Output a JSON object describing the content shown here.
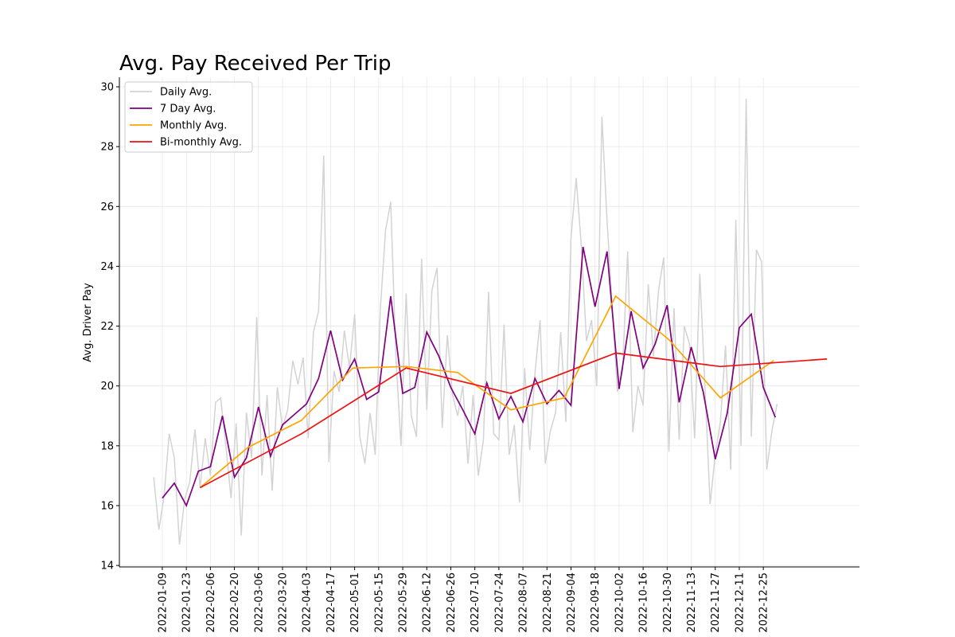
{
  "chart_data": {
    "type": "line",
    "title": "Avg. Pay Received Per Trip",
    "y_label": "Avg. Driver Pay",
    "xlim": [
      "2021-12-15",
      "2023-02-19"
    ],
    "ylim": [
      13.95,
      30.32
    ],
    "xticks": [
      "2022-01-09",
      "2022-01-23",
      "2022-02-06",
      "2022-02-20",
      "2022-03-06",
      "2022-03-20",
      "2022-04-03",
      "2022-04-17",
      "2022-05-01",
      "2022-05-15",
      "2022-05-29",
      "2022-06-12",
      "2022-06-26",
      "2022-07-10",
      "2022-07-24",
      "2022-08-07",
      "2022-08-21",
      "2022-09-04",
      "2022-09-18",
      "2022-10-02",
      "2022-10-16",
      "2022-10-30",
      "2022-11-13",
      "2022-11-27",
      "2022-12-11",
      "2022-12-25"
    ],
    "yticks": [
      14,
      16,
      18,
      20,
      22,
      24,
      26,
      28,
      30
    ],
    "grid": true,
    "legend": "upper left",
    "series": [
      {
        "name": "Daily Avg.",
        "color": "#d3d3d3",
        "x": [
          "2022-01-04",
          "2022-01-07",
          "2022-01-10",
          "2022-01-13",
          "2022-01-16",
          "2022-01-19",
          "2022-01-22",
          "2022-01-25",
          "2022-01-28",
          "2022-01-31",
          "2022-02-03",
          "2022-02-06",
          "2022-02-09",
          "2022-02-12",
          "2022-02-15",
          "2022-02-18",
          "2022-02-21",
          "2022-02-24",
          "2022-02-27",
          "2022-03-02",
          "2022-03-05",
          "2022-03-08",
          "2022-03-11",
          "2022-03-14",
          "2022-03-17",
          "2022-03-20",
          "2022-03-23",
          "2022-03-26",
          "2022-03-29",
          "2022-04-01",
          "2022-04-04",
          "2022-04-07",
          "2022-04-10",
          "2022-04-13",
          "2022-04-16",
          "2022-04-19",
          "2022-04-22",
          "2022-04-25",
          "2022-04-28",
          "2022-05-01",
          "2022-05-04",
          "2022-05-07",
          "2022-05-10",
          "2022-05-13",
          "2022-05-16",
          "2022-05-19",
          "2022-05-22",
          "2022-05-25",
          "2022-05-28",
          "2022-05-31",
          "2022-06-03",
          "2022-06-06",
          "2022-06-09",
          "2022-06-12",
          "2022-06-15",
          "2022-06-18",
          "2022-06-21",
          "2022-06-24",
          "2022-06-27",
          "2022-06-30",
          "2022-07-03",
          "2022-07-06",
          "2022-07-09",
          "2022-07-12",
          "2022-07-15",
          "2022-07-18",
          "2022-07-21",
          "2022-07-24",
          "2022-07-27",
          "2022-07-30",
          "2022-08-02",
          "2022-08-05",
          "2022-08-08",
          "2022-08-11",
          "2022-08-14",
          "2022-08-17",
          "2022-08-20",
          "2022-08-23",
          "2022-08-26",
          "2022-08-29",
          "2022-09-01",
          "2022-09-04",
          "2022-09-07",
          "2022-09-10",
          "2022-09-13",
          "2022-09-16",
          "2022-09-19",
          "2022-09-22",
          "2022-09-25",
          "2022-09-28",
          "2022-10-01",
          "2022-10-04",
          "2022-10-07",
          "2022-10-10",
          "2022-10-13",
          "2022-10-16",
          "2022-10-19",
          "2022-10-22",
          "2022-10-25",
          "2022-10-28",
          "2022-10-31",
          "2022-11-03",
          "2022-11-06",
          "2022-11-09",
          "2022-11-12",
          "2022-11-15",
          "2022-11-18",
          "2022-11-21",
          "2022-11-24",
          "2022-11-27",
          "2022-11-30",
          "2022-12-03",
          "2022-12-06",
          "2022-12-09",
          "2022-12-12",
          "2022-12-15",
          "2022-12-18",
          "2022-12-21",
          "2022-12-24",
          "2022-12-27",
          "2022-12-30",
          "2023-01-02"
        ],
        "values": [
          16.95,
          15.2,
          16.3,
          18.4,
          17.6,
          14.7,
          16.2,
          16.8,
          18.55,
          16.6,
          18.25,
          17.0,
          19.45,
          19.6,
          18.0,
          16.25,
          18.75,
          15.0,
          19.1,
          17.6,
          22.3,
          17.0,
          19.7,
          16.5,
          19.95,
          18.6,
          19.2,
          20.85,
          20.05,
          20.95,
          18.25,
          21.8,
          22.5,
          27.7,
          17.45,
          20.5,
          19.8,
          21.85,
          20.6,
          22.4,
          18.3,
          17.4,
          19.1,
          17.7,
          22.6,
          25.2,
          26.15,
          21.0,
          18.0,
          23.1,
          19.0,
          18.3,
          24.25,
          19.2,
          23.2,
          23.95,
          18.6,
          21.7,
          19.7,
          19.0,
          20.0,
          17.4,
          19.7,
          17.0,
          18.2,
          23.15,
          18.4,
          18.2,
          22.05,
          17.7,
          18.7,
          16.1,
          20.6,
          17.85,
          20.4,
          22.2,
          17.4,
          18.5,
          19.1,
          21.8,
          18.8,
          24.95,
          26.95,
          24.7,
          21.5,
          22.2,
          20.0,
          29.0,
          25.5,
          22.7,
          19.8,
          20.5,
          24.5,
          18.45,
          20.0,
          19.35,
          23.4,
          21.0,
          23.2,
          24.3,
          17.8,
          22.6,
          18.2,
          22.0,
          21.4,
          18.25,
          23.75,
          20.0,
          16.05,
          17.7,
          18.8,
          21.35,
          17.2,
          25.55,
          18.0,
          29.6,
          18.3,
          24.55,
          24.15,
          17.2,
          18.5,
          19.4
        ]
      },
      {
        "name": "7 Day Avg.",
        "color": "#800080",
        "x": [
          "2022-01-09",
          "2022-01-16",
          "2022-01-23",
          "2022-01-30",
          "2022-02-06",
          "2022-02-13",
          "2022-02-20",
          "2022-02-27",
          "2022-03-06",
          "2022-03-13",
          "2022-03-20",
          "2022-03-27",
          "2022-04-03",
          "2022-04-10",
          "2022-04-17",
          "2022-04-24",
          "2022-05-01",
          "2022-05-08",
          "2022-05-15",
          "2022-05-22",
          "2022-05-29",
          "2022-06-05",
          "2022-06-12",
          "2022-06-19",
          "2022-06-26",
          "2022-07-03",
          "2022-07-10",
          "2022-07-17",
          "2022-07-24",
          "2022-07-31",
          "2022-08-07",
          "2022-08-14",
          "2022-08-21",
          "2022-08-28",
          "2022-09-04",
          "2022-09-11",
          "2022-09-18",
          "2022-09-25",
          "2022-10-02",
          "2022-10-09",
          "2022-10-16",
          "2022-10-23",
          "2022-10-30",
          "2022-11-06",
          "2022-11-13",
          "2022-11-20",
          "2022-11-27",
          "2022-12-04",
          "2022-12-11",
          "2022-12-18",
          "2022-12-25",
          "2023-01-01"
        ],
        "values": [
          16.25,
          16.75,
          16.0,
          17.15,
          17.3,
          19.0,
          16.95,
          17.6,
          19.3,
          17.65,
          18.7,
          19.05,
          19.4,
          20.25,
          21.85,
          20.2,
          20.9,
          19.55,
          19.8,
          23.0,
          19.75,
          19.95,
          21.8,
          21.0,
          19.95,
          19.2,
          18.4,
          20.1,
          18.9,
          19.65,
          18.8,
          20.25,
          19.4,
          19.85,
          19.35,
          24.65,
          22.65,
          24.5,
          19.9,
          22.5,
          20.6,
          21.4,
          22.7,
          19.45,
          21.3,
          19.8,
          17.55,
          19.1,
          21.95,
          22.4,
          19.95,
          18.95
        ]
      },
      {
        "name": "Monthly Avg.",
        "color": "#ffa500",
        "x": [
          "2022-01-31",
          "2022-02-28",
          "2022-03-31",
          "2022-04-30",
          "2022-05-31",
          "2022-06-30",
          "2022-07-31",
          "2022-08-31",
          "2022-09-30",
          "2022-10-31",
          "2022-11-30",
          "2022-12-31"
        ],
        "values": [
          16.6,
          17.95,
          18.85,
          20.6,
          20.65,
          20.45,
          19.2,
          19.6,
          23.0,
          21.55,
          19.6,
          20.85
        ]
      },
      {
        "name": "Bi-monthly Avg.",
        "color": "#ee1111",
        "x": [
          "2022-01-31",
          "2022-03-31",
          "2022-05-31",
          "2022-07-31",
          "2022-09-30",
          "2022-11-30",
          "2023-01-31"
        ],
        "values": [
          16.6,
          18.4,
          20.6,
          19.75,
          21.1,
          20.65,
          20.9
        ]
      }
    ]
  }
}
